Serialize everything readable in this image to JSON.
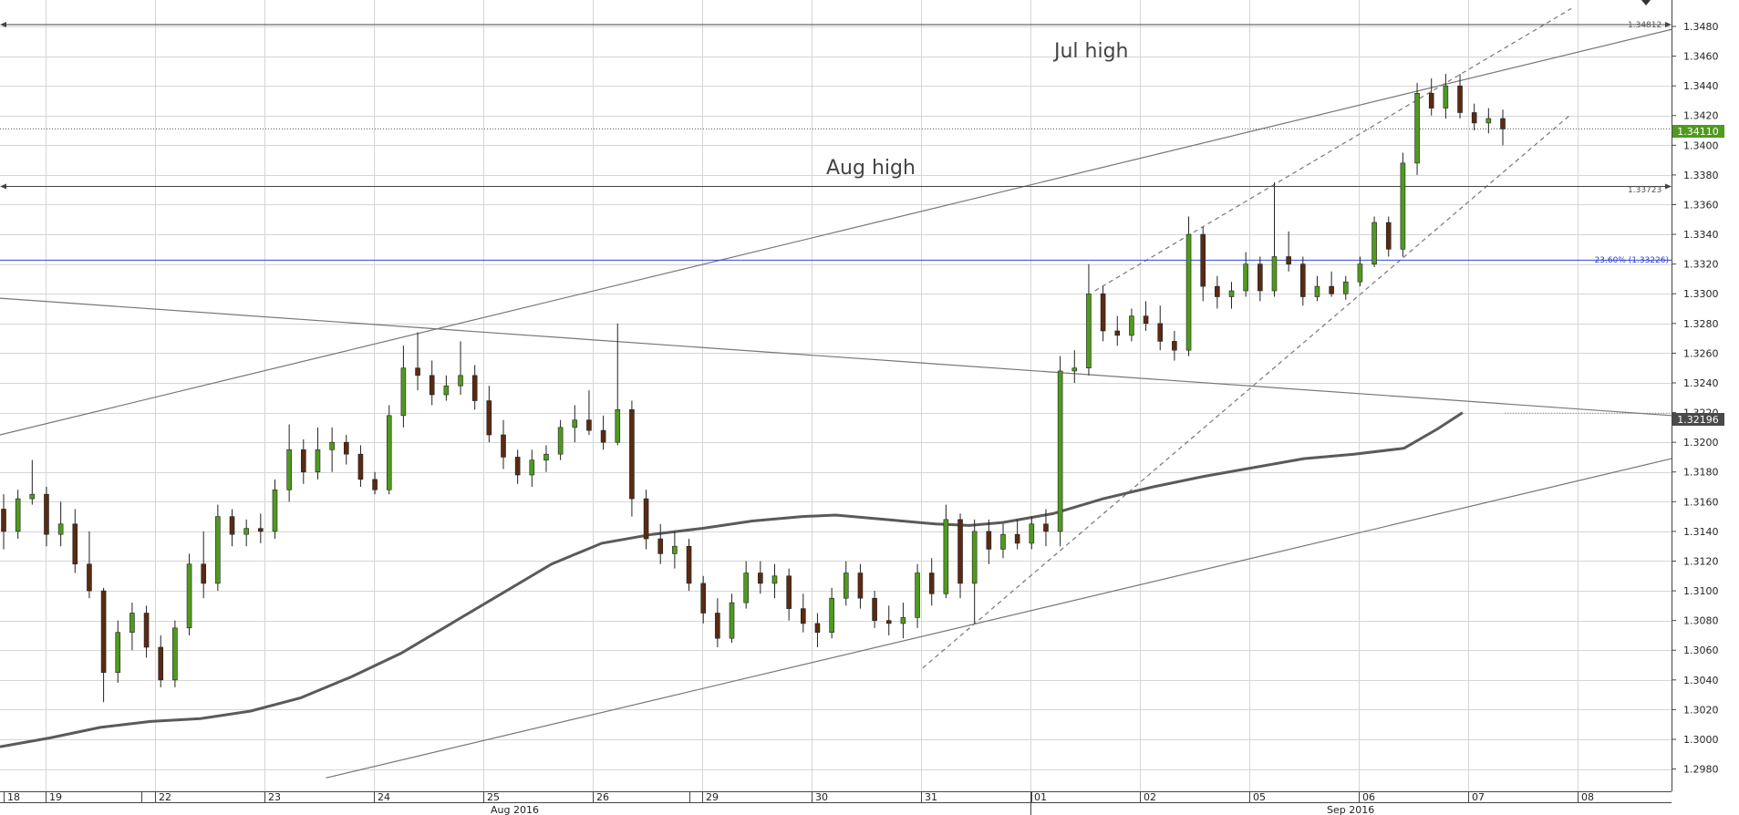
{
  "chart_data": {
    "type": "candlestick",
    "instrument_note": "",
    "x_axis": {
      "day_ticks": [
        "18",
        "19",
        "22",
        "23",
        "24",
        "25",
        "26",
        "29",
        "30",
        "31",
        "01",
        "02",
        "05",
        "06",
        "07",
        "08"
      ],
      "month_labels": [
        "Aug 2016",
        "Sep 2016"
      ]
    },
    "y_axis": {
      "ylim": [
        1.297,
        1.349
      ],
      "ticks": [
        "1.3480",
        "1.3460",
        "1.3440",
        "1.3420",
        "1.3400",
        "1.3380",
        "1.3360",
        "1.3340",
        "1.3320",
        "1.3300",
        "1.3280",
        "1.3260",
        "1.3240",
        "1.3220",
        "1.3200",
        "1.3180",
        "1.3160",
        "1.3140",
        "1.3120",
        "1.3100",
        "1.3080",
        "1.3060",
        "1.3040",
        "1.3020",
        "1.3000",
        "1.2980"
      ],
      "tick_values": [
        1.348,
        1.346,
        1.344,
        1.342,
        1.34,
        1.338,
        1.336,
        1.334,
        1.332,
        1.33,
        1.328,
        1.326,
        1.324,
        1.322,
        1.32,
        1.318,
        1.316,
        1.314,
        1.312,
        1.31,
        1.308,
        1.306,
        1.304,
        1.302,
        1.3,
        1.298
      ]
    },
    "annotations": {
      "jul_high": {
        "text": "Jul high",
        "price_label": "1.34812",
        "value": 1.34812
      },
      "aug_high": {
        "text": "Aug high",
        "price_label": "1.33723",
        "value": 1.33723
      },
      "fib": {
        "text": "23.60% (1.33226)",
        "value": 1.33226
      },
      "last_price": {
        "text": "1.34110",
        "value": 1.3411
      },
      "ma_price": {
        "text": "1.32196",
        "value": 1.32196
      }
    },
    "moving_average": [
      [
        0,
        1.2995
      ],
      [
        0.03,
        1.3001
      ],
      [
        0.06,
        1.3008
      ],
      [
        0.09,
        1.3012
      ],
      [
        0.12,
        1.3014
      ],
      [
        0.15,
        1.3019
      ],
      [
        0.18,
        1.3028
      ],
      [
        0.21,
        1.3042
      ],
      [
        0.24,
        1.3058
      ],
      [
        0.27,
        1.3078
      ],
      [
        0.3,
        1.3098
      ],
      [
        0.33,
        1.3118
      ],
      [
        0.36,
        1.3132
      ],
      [
        0.39,
        1.3138
      ],
      [
        0.42,
        1.3142
      ],
      [
        0.45,
        1.3147
      ],
      [
        0.48,
        1.315
      ],
      [
        0.5,
        1.3151
      ],
      [
        0.53,
        1.3148
      ],
      [
        0.56,
        1.3145
      ],
      [
        0.58,
        1.3144
      ],
      [
        0.6,
        1.3146
      ],
      [
        0.63,
        1.3152
      ],
      [
        0.66,
        1.3162
      ],
      [
        0.69,
        1.317
      ],
      [
        0.72,
        1.3177
      ],
      [
        0.75,
        1.3183
      ],
      [
        0.78,
        1.3189
      ],
      [
        0.81,
        1.3192
      ],
      [
        0.84,
        1.3196
      ],
      [
        0.86,
        1.3209
      ],
      [
        0.875,
        1.322
      ]
    ],
    "trend_lines": [
      {
        "x1": 0,
        "y1": 1.3205,
        "x2": 1.0,
        "y2": 1.3478,
        "style": "solid"
      },
      {
        "x1": 0,
        "y1": 1.3297,
        "x2": 1.0,
        "y2": 1.3218,
        "style": "solid"
      },
      {
        "x1": 0.195,
        "y1": 1.2974,
        "x2": 1.0,
        "y2": 1.3189,
        "style": "solid"
      },
      {
        "x1": 0.552,
        "y1": 1.3048,
        "x2": 0.94,
        "y2": 1.3421,
        "style": "dashed"
      },
      {
        "x1": 0.655,
        "y1": 1.3302,
        "x2": 0.94,
        "y2": 1.3492,
        "style": "dashed"
      }
    ],
    "candles": [
      [
        1.3155,
        1.3165,
        1.3128,
        1.314
      ],
      [
        1.314,
        1.3168,
        1.3135,
        1.3162
      ],
      [
        1.3162,
        1.3188,
        1.3158,
        1.3165
      ],
      [
        1.3165,
        1.317,
        1.313,
        1.3138
      ],
      [
        1.3138,
        1.316,
        1.313,
        1.3145
      ],
      [
        1.3145,
        1.3155,
        1.3112,
        1.3118
      ],
      [
        1.3118,
        1.314,
        1.3095,
        1.31
      ],
      [
        1.31,
        1.3102,
        1.3025,
        1.3045
      ],
      [
        1.3045,
        1.308,
        1.3038,
        1.3072
      ],
      [
        1.3072,
        1.3092,
        1.306,
        1.3085
      ],
      [
        1.3085,
        1.309,
        1.3055,
        1.3062
      ],
      [
        1.3062,
        1.307,
        1.3035,
        1.304
      ],
      [
        1.304,
        1.308,
        1.3035,
        1.3075
      ],
      [
        1.3075,
        1.3125,
        1.307,
        1.3118
      ],
      [
        1.3118,
        1.314,
        1.3095,
        1.3105
      ],
      [
        1.3105,
        1.3158,
        1.31,
        1.315
      ],
      [
        1.315,
        1.3155,
        1.313,
        1.3138
      ],
      [
        1.3138,
        1.3148,
        1.313,
        1.3142
      ],
      [
        1.3142,
        1.3152,
        1.3132,
        1.314
      ],
      [
        1.314,
        1.3175,
        1.3135,
        1.3168
      ],
      [
        1.3168,
        1.3212,
        1.316,
        1.3195
      ],
      [
        1.3195,
        1.3202,
        1.3172,
        1.318
      ],
      [
        1.318,
        1.321,
        1.3175,
        1.3195
      ],
      [
        1.3195,
        1.321,
        1.318,
        1.32
      ],
      [
        1.32,
        1.3205,
        1.3185,
        1.3192
      ],
      [
        1.3192,
        1.3198,
        1.317,
        1.3175
      ],
      [
        1.3175,
        1.318,
        1.3165,
        1.3168
      ],
      [
        1.3168,
        1.3225,
        1.3165,
        1.3218
      ],
      [
        1.3218,
        1.3265,
        1.321,
        1.325
      ],
      [
        1.325,
        1.3274,
        1.3235,
        1.3245
      ],
      [
        1.3245,
        1.3255,
        1.3225,
        1.3232
      ],
      [
        1.3232,
        1.3245,
        1.3228,
        1.3238
      ],
      [
        1.3238,
        1.3268,
        1.3232,
        1.3245
      ],
      [
        1.3245,
        1.3252,
        1.3222,
        1.3228
      ],
      [
        1.3228,
        1.3238,
        1.32,
        1.3205
      ],
      [
        1.3205,
        1.3215,
        1.3182,
        1.319
      ],
      [
        1.319,
        1.3195,
        1.3172,
        1.3178
      ],
      [
        1.3178,
        1.3195,
        1.317,
        1.3188
      ],
      [
        1.3188,
        1.3198,
        1.318,
        1.3192
      ],
      [
        1.3192,
        1.3215,
        1.3188,
        1.321
      ],
      [
        1.321,
        1.3225,
        1.32,
        1.3215
      ],
      [
        1.3215,
        1.3235,
        1.3205,
        1.3208
      ],
      [
        1.3208,
        1.3218,
        1.3195,
        1.32
      ],
      [
        1.32,
        1.328,
        1.3198,
        1.3222
      ],
      [
        1.3222,
        1.3228,
        1.315,
        1.3162
      ],
      [
        1.3162,
        1.3168,
        1.3128,
        1.3135
      ],
      [
        1.3135,
        1.3145,
        1.3118,
        1.3125
      ],
      [
        1.3125,
        1.314,
        1.3115,
        1.313
      ],
      [
        1.313,
        1.3135,
        1.31,
        1.3105
      ],
      [
        1.3105,
        1.311,
        1.3078,
        1.3085
      ],
      [
        1.3085,
        1.3095,
        1.3062,
        1.3068
      ],
      [
        1.3068,
        1.3098,
        1.3065,
        1.3092
      ],
      [
        1.3092,
        1.312,
        1.3088,
        1.3112
      ],
      [
        1.3112,
        1.312,
        1.3098,
        1.3105
      ],
      [
        1.3105,
        1.3118,
        1.3095,
        1.311
      ],
      [
        1.311,
        1.3115,
        1.308,
        1.3088
      ],
      [
        1.3088,
        1.3098,
        1.3072,
        1.3078
      ],
      [
        1.3078,
        1.3085,
        1.3062,
        1.3072
      ],
      [
        1.3072,
        1.3102,
        1.3068,
        1.3095
      ],
      [
        1.3095,
        1.312,
        1.309,
        1.3112
      ],
      [
        1.3112,
        1.3118,
        1.3088,
        1.3095
      ],
      [
        1.3095,
        1.31,
        1.3075,
        1.308
      ],
      [
        1.308,
        1.309,
        1.307,
        1.3078
      ],
      [
        1.3078,
        1.3092,
        1.3068,
        1.3082
      ],
      [
        1.3082,
        1.3118,
        1.3075,
        1.3112
      ],
      [
        1.3112,
        1.3122,
        1.309,
        1.3098
      ],
      [
        1.3098,
        1.3158,
        1.3095,
        1.3148
      ],
      [
        1.3148,
        1.3152,
        1.3095,
        1.3105
      ],
      [
        1.3105,
        1.3148,
        1.3078,
        1.314
      ],
      [
        1.314,
        1.3148,
        1.3118,
        1.3128
      ],
      [
        1.3128,
        1.3145,
        1.3122,
        1.3138
      ],
      [
        1.3138,
        1.3148,
        1.3128,
        1.3132
      ],
      [
        1.3132,
        1.315,
        1.3128,
        1.3145
      ],
      [
        1.3145,
        1.3155,
        1.313,
        1.314
      ],
      [
        1.314,
        1.3258,
        1.313,
        1.3248
      ],
      [
        1.3248,
        1.3262,
        1.324,
        1.325
      ],
      [
        1.325,
        1.332,
        1.3245,
        1.33
      ],
      [
        1.33,
        1.3305,
        1.3268,
        1.3275
      ],
      [
        1.3275,
        1.3285,
        1.3265,
        1.3272
      ],
      [
        1.3272,
        1.329,
        1.3268,
        1.3285
      ],
      [
        1.3285,
        1.3295,
        1.3275,
        1.328
      ],
      [
        1.328,
        1.3292,
        1.3262,
        1.3268
      ],
      [
        1.3268,
        1.3275,
        1.3255,
        1.3262
      ],
      [
        1.3262,
        1.3352,
        1.3258,
        1.334
      ],
      [
        1.334,
        1.3345,
        1.3295,
        1.3305
      ],
      [
        1.3305,
        1.3312,
        1.329,
        1.3298
      ],
      [
        1.3298,
        1.3308,
        1.329,
        1.3302
      ],
      [
        1.3302,
        1.3328,
        1.3298,
        1.332
      ],
      [
        1.332,
        1.3325,
        1.3295,
        1.3302
      ],
      [
        1.3302,
        1.3375,
        1.3298,
        1.3325
      ],
      [
        1.3325,
        1.3342,
        1.3315,
        1.332
      ],
      [
        1.332,
        1.3325,
        1.3292,
        1.3298
      ],
      [
        1.3298,
        1.3312,
        1.3295,
        1.3305
      ],
      [
        1.3305,
        1.3315,
        1.3298,
        1.33
      ],
      [
        1.33,
        1.3312,
        1.3296,
        1.3308
      ],
      [
        1.3308,
        1.3325,
        1.3305,
        1.332
      ],
      [
        1.332,
        1.3352,
        1.3318,
        1.3348
      ],
      [
        1.3348,
        1.3352,
        1.3325,
        1.333
      ],
      [
        1.333,
        1.3395,
        1.3325,
        1.3388
      ],
      [
        1.3388,
        1.3442,
        1.338,
        1.3435
      ],
      [
        1.3435,
        1.3445,
        1.342,
        1.3425
      ],
      [
        1.3425,
        1.3448,
        1.3418,
        1.344
      ],
      [
        1.344,
        1.3448,
        1.3418,
        1.3422
      ],
      [
        1.3422,
        1.3428,
        1.341,
        1.3415
      ],
      [
        1.3415,
        1.3425,
        1.3408,
        1.3418
      ],
      [
        1.3418,
        1.3424,
        1.34,
        1.3411
      ]
    ]
  }
}
